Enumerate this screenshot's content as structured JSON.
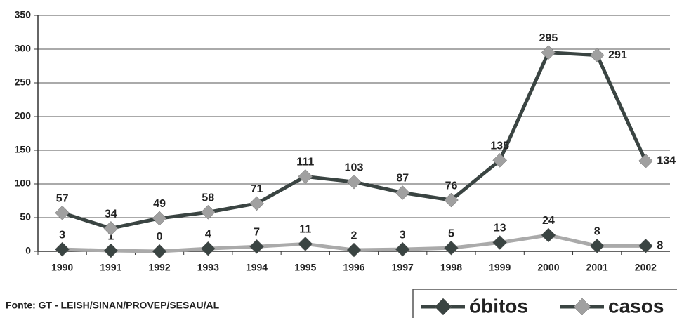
{
  "chart_data": {
    "type": "line",
    "categories": [
      "1990",
      "1991",
      "1992",
      "1993",
      "1994",
      "1995",
      "1996",
      "1997",
      "1998",
      "1999",
      "2000",
      "2001",
      "2002"
    ],
    "series": [
      {
        "name": "óbitos",
        "color": "#aaaaaa",
        "marker_color": "#3a4442",
        "legend_line_color": "#3a4442",
        "values": [
          3,
          1,
          0,
          4,
          7,
          11,
          2,
          3,
          5,
          13,
          24,
          8,
          8
        ]
      },
      {
        "name": "casos",
        "color": "#3a4442",
        "marker_color": "#a0a0a0",
        "legend_line_color": "#3a4442",
        "values": [
          57,
          34,
          49,
          58,
          71,
          111,
          103,
          87,
          76,
          135,
          295,
          291,
          134
        ]
      }
    ],
    "ylim": [
      0,
      350
    ],
    "yticks": [
      0,
      50,
      100,
      150,
      200,
      250,
      300,
      350
    ],
    "grid": true,
    "source": "Fonte: GT - LEISH/SINAN/PROVEP/SESAU/AL"
  }
}
